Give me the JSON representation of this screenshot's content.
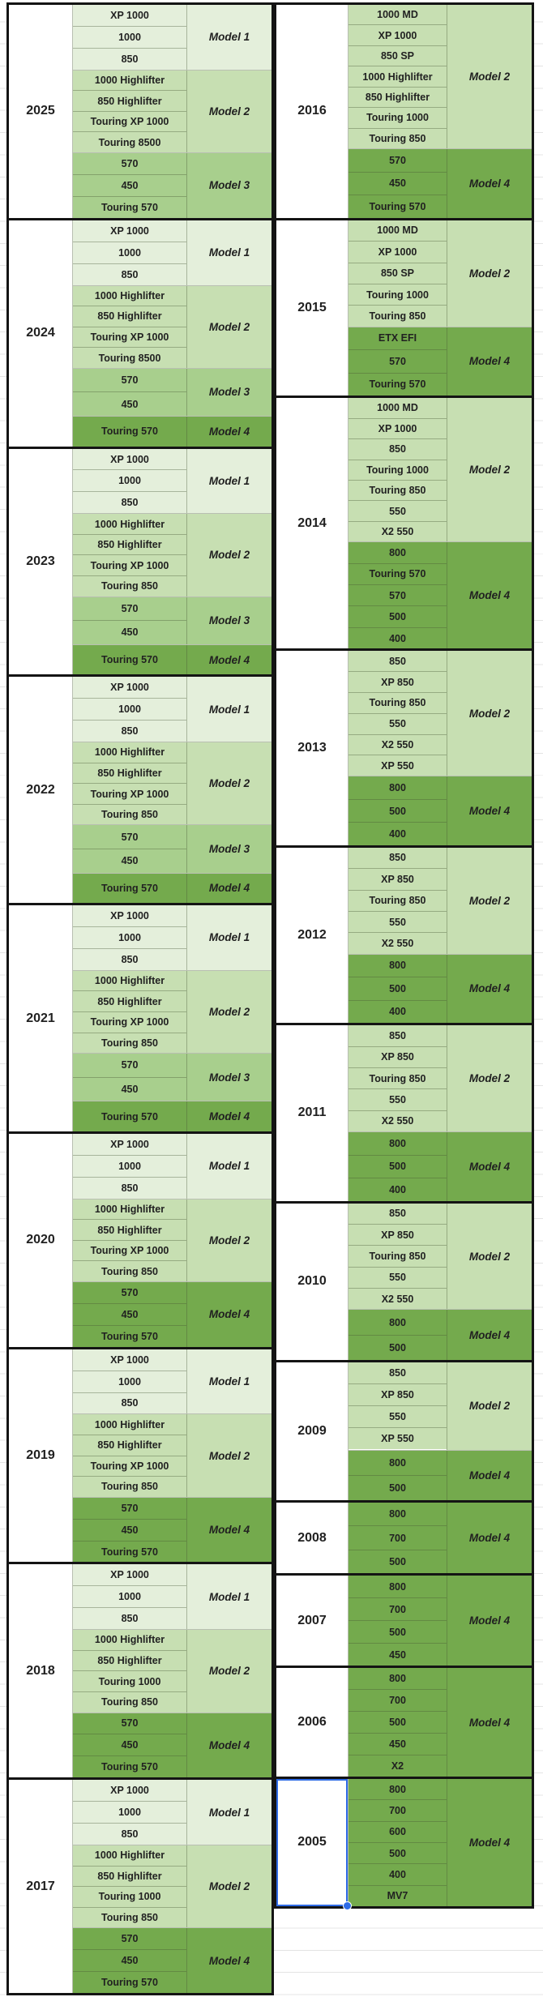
{
  "colors": {
    "model1": "#e4efdb",
    "model2": "#c7dfb2",
    "model3": "#a8cf8d",
    "model4": "#74aa4d",
    "border": "#141414",
    "grid_line": "rgba(70,88,52,0.38)",
    "text": "#212121",
    "selection": "#2e6be6"
  },
  "left_column": [
    {
      "year": "2025",
      "groups": [
        {
          "label": "Model 1",
          "shade": "model1",
          "models": [
            "XP 1000",
            "1000",
            "850"
          ]
        },
        {
          "label": "Model 2",
          "shade": "model2",
          "models": [
            "1000 Highlifter",
            "850 Highlifter",
            "Touring XP 1000",
            "Touring 8500"
          ]
        },
        {
          "label": "Model 3",
          "shade": "model3",
          "models": [
            "570",
            "450",
            "Touring 570"
          ]
        }
      ]
    },
    {
      "year": "2024",
      "groups": [
        {
          "label": "Model 1",
          "shade": "model1",
          "models": [
            "XP 1000",
            "1000",
            "850"
          ]
        },
        {
          "label": "Model 2",
          "shade": "model2",
          "models": [
            "1000 Highlifter",
            "850 Highlifter",
            "Touring XP 1000",
            "Touring 8500"
          ]
        },
        {
          "label": "Model 3",
          "shade": "model3",
          "models": [
            "570",
            "450"
          ]
        },
        {
          "label": "Model 4",
          "shade": "model4",
          "models": [
            "Touring 570"
          ]
        }
      ]
    },
    {
      "year": "2023",
      "groups": [
        {
          "label": "Model 1",
          "shade": "model1",
          "models": [
            "XP 1000",
            "1000",
            "850"
          ]
        },
        {
          "label": "Model 2",
          "shade": "model2",
          "models": [
            "1000 Highlifter",
            "850 Highlifter",
            "Touring XP 1000",
            "Touring 850"
          ]
        },
        {
          "label": "Model 3",
          "shade": "model3",
          "models": [
            "570",
            "450"
          ]
        },
        {
          "label": "Model 4",
          "shade": "model4",
          "models": [
            "Touring 570"
          ]
        }
      ]
    },
    {
      "year": "2022",
      "groups": [
        {
          "label": "Model 1",
          "shade": "model1",
          "models": [
            "XP 1000",
            "1000",
            "850"
          ]
        },
        {
          "label": "Model 2",
          "shade": "model2",
          "models": [
            "1000 Highlifter",
            "850 Highlifter",
            "Touring XP 1000",
            "Touring 850"
          ]
        },
        {
          "label": "Model 3",
          "shade": "model3",
          "models": [
            "570",
            "450"
          ]
        },
        {
          "label": "Model 4",
          "shade": "model4",
          "models": [
            "Touring 570"
          ]
        }
      ]
    },
    {
      "year": "2021",
      "groups": [
        {
          "label": "Model 1",
          "shade": "model1",
          "models": [
            "XP 1000",
            "1000",
            "850"
          ]
        },
        {
          "label": "Model 2",
          "shade": "model2",
          "models": [
            "1000 Highlifter",
            "850 Highlifter",
            "Touring XP 1000",
            "Touring 850"
          ]
        },
        {
          "label": "Model 3",
          "shade": "model3",
          "models": [
            "570",
            "450"
          ]
        },
        {
          "label": "Model 4",
          "shade": "model4",
          "models": [
            "Touring 570"
          ]
        }
      ]
    },
    {
      "year": "2020",
      "groups": [
        {
          "label": "Model 1",
          "shade": "model1",
          "models": [
            "XP 1000",
            "1000",
            "850"
          ]
        },
        {
          "label": "Model 2",
          "shade": "model2",
          "models": [
            "1000 Highlifter",
            "850 Highlifter",
            "Touring XP 1000",
            "Touring 850"
          ]
        },
        {
          "label": "Model 4",
          "shade": "model4",
          "models": [
            "570",
            "450",
            "Touring 570"
          ]
        }
      ]
    },
    {
      "year": "2019",
      "groups": [
        {
          "label": "Model 1",
          "shade": "model1",
          "models": [
            "XP 1000",
            "1000",
            "850"
          ]
        },
        {
          "label": "Model 2",
          "shade": "model2",
          "models": [
            "1000 Highlifter",
            "850 Highlifter",
            "Touring XP 1000",
            "Touring 850"
          ]
        },
        {
          "label": "Model 4",
          "shade": "model4",
          "models": [
            "570",
            "450",
            "Touring 570"
          ]
        }
      ]
    },
    {
      "year": "2018",
      "groups": [
        {
          "label": "Model 1",
          "shade": "model1",
          "models": [
            "XP 1000",
            "1000",
            "850"
          ]
        },
        {
          "label": "Model 2",
          "shade": "model2",
          "models": [
            "1000 Highlifter",
            "850 Highlifter",
            "Touring 1000",
            "Touring 850"
          ]
        },
        {
          "label": "Model 4",
          "shade": "model4",
          "models": [
            "570",
            "450",
            "Touring 570"
          ]
        }
      ]
    },
    {
      "year": "2017",
      "groups": [
        {
          "label": "Model 1",
          "shade": "model1",
          "models": [
            "XP 1000",
            "1000",
            "850"
          ]
        },
        {
          "label": "Model 2",
          "shade": "model2",
          "models": [
            "1000 Highlifter",
            "850 Highlifter",
            "Touring 1000",
            "Touring 850"
          ]
        },
        {
          "label": "Model 4",
          "shade": "model4",
          "models": [
            "570",
            "450",
            "Touring 570"
          ]
        }
      ]
    }
  ],
  "right_column": [
    {
      "year": "2016",
      "groups": [
        {
          "label": "Model 2",
          "shade": "model2",
          "models": [
            "1000 MD",
            "XP 1000",
            "850 SP",
            "1000 Highlifter",
            "850 Highlifter",
            "Touring 1000",
            "Touring 850"
          ]
        },
        {
          "label": "Model 4",
          "shade": "model4",
          "models": [
            "570",
            "450",
            "Touring 570"
          ]
        }
      ]
    },
    {
      "year": "2015",
      "groups": [
        {
          "label": "Model 2",
          "shade": "model2",
          "models": [
            "1000 MD",
            "XP 1000",
            "850 SP",
            "Touring 1000",
            "Touring 850"
          ]
        },
        {
          "label": "Model 4",
          "shade": "model4",
          "models": [
            "ETX EFI",
            "570",
            "Touring 570"
          ]
        }
      ]
    },
    {
      "year": "2014",
      "groups": [
        {
          "label": "Model 2",
          "shade": "model2",
          "models": [
            "1000 MD",
            "XP 1000",
            "850",
            "Touring 1000",
            "Touring 850",
            "550",
            "X2 550"
          ]
        },
        {
          "label": "Model 4",
          "shade": "model4",
          "models": [
            "800",
            "Touring 570",
            "570",
            "500",
            "400"
          ]
        }
      ]
    },
    {
      "year": "2013",
      "groups": [
        {
          "label": "Model 2",
          "shade": "model2",
          "models": [
            "850",
            "XP 850",
            "Touring 850",
            "550",
            "X2 550",
            "XP 550"
          ]
        },
        {
          "label": "Model 4",
          "shade": "model4",
          "models": [
            "800",
            "500",
            "400"
          ]
        }
      ]
    },
    {
      "year": "2012",
      "groups": [
        {
          "label": "Model 2",
          "shade": "model2",
          "models": [
            "850",
            "XP 850",
            "Touring 850",
            "550",
            "X2 550"
          ]
        },
        {
          "label": "Model 4",
          "shade": "model4",
          "models": [
            "800",
            "500",
            "400"
          ]
        }
      ]
    },
    {
      "year": "2011",
      "groups": [
        {
          "label": "Model 2",
          "shade": "model2",
          "models": [
            "850",
            "XP 850",
            "Touring 850",
            "550",
            "X2 550"
          ]
        },
        {
          "label": "Model 4",
          "shade": "model4",
          "models": [
            "800",
            "500",
            "400"
          ]
        }
      ]
    },
    {
      "year": "2010",
      "groups": [
        {
          "label": "Model 2",
          "shade": "model2",
          "models": [
            "850",
            "XP 850",
            "Touring 850",
            "550",
            "X2 550"
          ]
        },
        {
          "label": "Model 4",
          "shade": "model4",
          "models": [
            "800",
            "500"
          ]
        }
      ]
    },
    {
      "year": "2009",
      "groups": [
        {
          "label": "Model 2",
          "shade": "model2",
          "models": [
            "850",
            "XP 850",
            "550",
            "XP 550"
          ]
        },
        {
          "label": "Model 4",
          "shade": "model4",
          "models": [
            "800",
            "500"
          ]
        }
      ]
    },
    {
      "year": "2008",
      "groups": [
        {
          "label": "Model 4",
          "shade": "model4",
          "models": [
            "800",
            "700",
            "500"
          ]
        }
      ]
    },
    {
      "year": "2007",
      "groups": [
        {
          "label": "Model 4",
          "shade": "model4",
          "models": [
            "800",
            "700",
            "500",
            "450"
          ]
        }
      ]
    },
    {
      "year": "2006",
      "groups": [
        {
          "label": "Model 4",
          "shade": "model4",
          "models": [
            "800",
            "700",
            "500",
            "450",
            "X2"
          ]
        }
      ]
    },
    {
      "year": "2005",
      "selected": true,
      "groups": [
        {
          "label": "Model 4",
          "shade": "model4",
          "models": [
            "800",
            "700",
            "600",
            "500",
            "400",
            "MV7"
          ]
        }
      ]
    }
  ],
  "selected_year": "2005"
}
